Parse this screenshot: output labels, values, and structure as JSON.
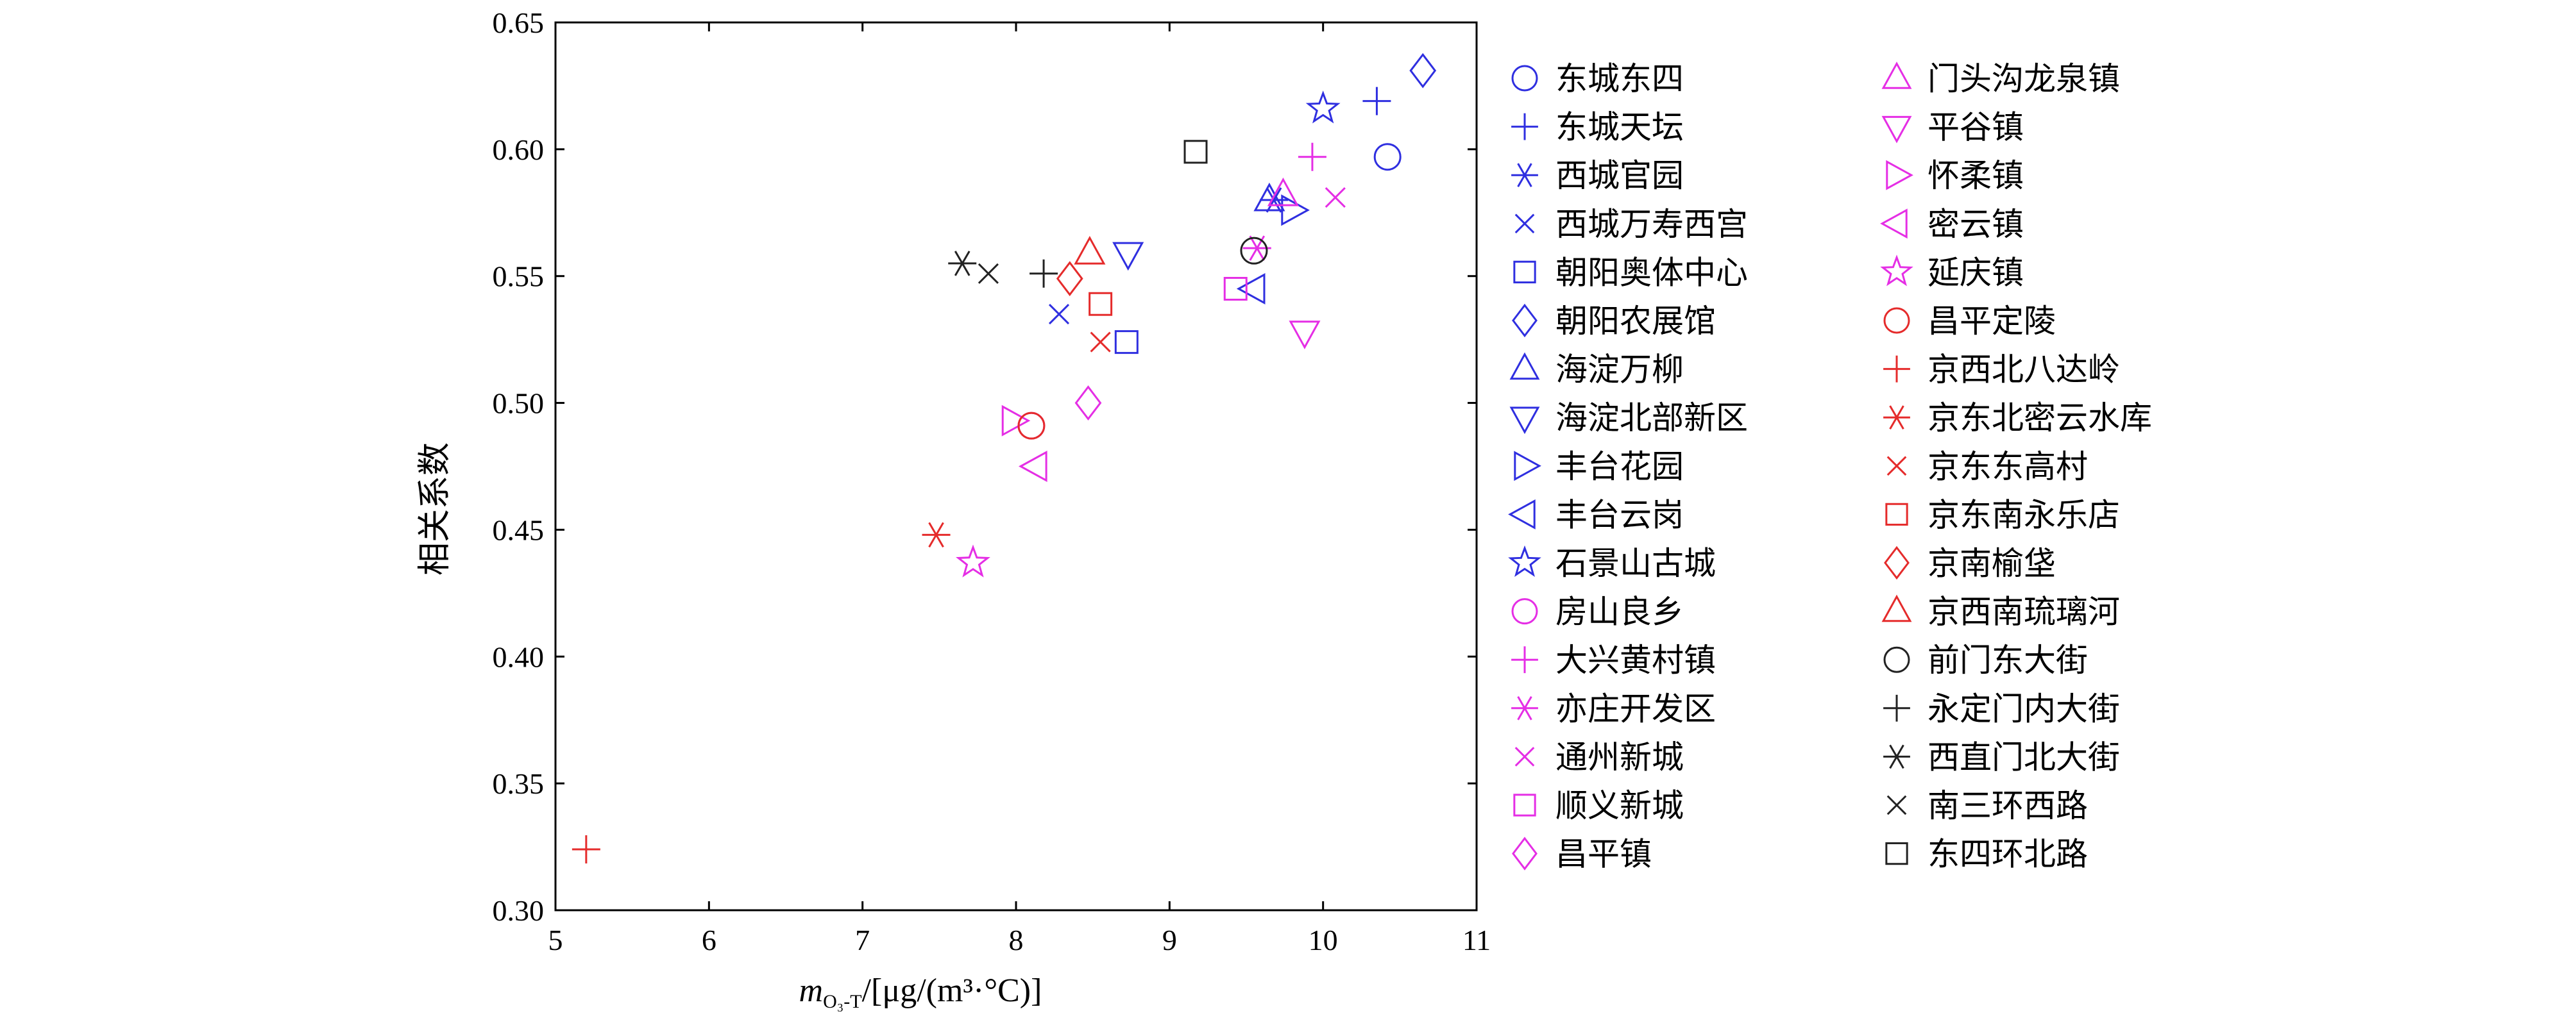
{
  "chart_data": {
    "type": "scatter",
    "ylabel": "相关系数",
    "xlabel": {
      "m": "m",
      "sub": "O₃-T",
      "unit": "/[μg/(m³·°C)]"
    },
    "xlim": [
      5,
      11
    ],
    "ylim": [
      0.3,
      0.65
    ],
    "x_ticks": [
      "5",
      "6",
      "7",
      "8",
      "9",
      "10",
      "11"
    ],
    "y_ticks": [
      "0.30",
      "0.35",
      "0.40",
      "0.45",
      "0.50",
      "0.55",
      "0.60",
      "0.65"
    ],
    "grid": false,
    "legend_position": "right, outside plot, two columns",
    "colors": {
      "blue": "#2f2fe0",
      "magenta": "#e52ee5",
      "red": "#e52b2b",
      "black": "#222222"
    },
    "series": [
      {
        "name": "东城东四",
        "marker": "circle",
        "color": "blue",
        "x": 10.42,
        "y": 0.597
      },
      {
        "name": "东城天坛",
        "marker": "plus",
        "color": "blue",
        "x": 10.35,
        "y": 0.619
      },
      {
        "name": "西城官园",
        "marker": "asterisk",
        "color": "blue",
        "x": 9.68,
        "y": 0.58
      },
      {
        "name": "西城万寿西宫",
        "marker": "x",
        "color": "blue",
        "x": 8.28,
        "y": 0.535
      },
      {
        "name": "朝阳奥体中心",
        "marker": "square",
        "color": "blue",
        "x": 8.72,
        "y": 0.524
      },
      {
        "name": "朝阳农展馆",
        "marker": "diamond",
        "color": "blue",
        "x": 10.65,
        "y": 0.631
      },
      {
        "name": "海淀万柳",
        "marker": "triangle-up",
        "color": "blue",
        "x": 9.65,
        "y": 0.58
      },
      {
        "name": "海淀北部新区",
        "marker": "triangle-down",
        "color": "blue",
        "x": 8.73,
        "y": 0.559
      },
      {
        "name": "丰台花园",
        "marker": "triangle-right",
        "color": "blue",
        "x": 9.8,
        "y": 0.576
      },
      {
        "name": "丰台云岗",
        "marker": "triangle-left",
        "color": "blue",
        "x": 9.55,
        "y": 0.545
      },
      {
        "name": "石景山古城",
        "marker": "star",
        "color": "blue",
        "x": 10.0,
        "y": 0.616
      },
      {
        "name": "房山良乡",
        "marker": "circle",
        "color": "magenta",
        "x": 8.1,
        "y": 0.491
      },
      {
        "name": "大兴黄村镇",
        "marker": "plus",
        "color": "magenta",
        "x": 9.93,
        "y": 0.597
      },
      {
        "name": "亦庄开发区",
        "marker": "asterisk",
        "color": "magenta",
        "x": 9.57,
        "y": 0.561
      },
      {
        "name": "通州新城",
        "marker": "x",
        "color": "magenta",
        "x": 10.08,
        "y": 0.581
      },
      {
        "name": "顺义新城",
        "marker": "square",
        "color": "magenta",
        "x": 9.43,
        "y": 0.545
      },
      {
        "name": "昌平镇",
        "marker": "diamond",
        "color": "magenta",
        "x": 8.47,
        "y": 0.5
      },
      {
        "name": "门头沟龙泉镇",
        "marker": "triangle-up",
        "color": "magenta",
        "x": 9.74,
        "y": 0.582
      },
      {
        "name": "平谷镇",
        "marker": "triangle-down",
        "color": "magenta",
        "x": 9.88,
        "y": 0.528
      },
      {
        "name": "怀柔镇",
        "marker": "triangle-right",
        "color": "magenta",
        "x": 7.98,
        "y": 0.493
      },
      {
        "name": "密云镇",
        "marker": "triangle-left",
        "color": "magenta",
        "x": 8.13,
        "y": 0.475
      },
      {
        "name": "延庆镇",
        "marker": "star",
        "color": "magenta",
        "x": 7.72,
        "y": 0.437
      },
      {
        "name": "昌平定陵",
        "marker": "circle",
        "color": "red",
        "x": 8.1,
        "y": 0.491
      },
      {
        "name": "京西北八达岭",
        "marker": "plus",
        "color": "red",
        "x": 5.2,
        "y": 0.324
      },
      {
        "name": "京东北密云水库",
        "marker": "asterisk",
        "color": "red",
        "x": 7.48,
        "y": 0.448
      },
      {
        "name": "京东东高村",
        "marker": "x",
        "color": "red",
        "x": 8.55,
        "y": 0.524
      },
      {
        "name": "京东南永乐店",
        "marker": "square",
        "color": "red",
        "x": 8.55,
        "y": 0.539
      },
      {
        "name": "京南榆垡",
        "marker": "diamond",
        "color": "red",
        "x": 8.35,
        "y": 0.549
      },
      {
        "name": "京西南琉璃河",
        "marker": "triangle-up",
        "color": "red",
        "x": 8.48,
        "y": 0.559
      },
      {
        "name": "前门东大街",
        "marker": "circle",
        "color": "black",
        "x": 9.55,
        "y": 0.56
      },
      {
        "name": "永定门内大街",
        "marker": "plus",
        "color": "black",
        "x": 8.18,
        "y": 0.551
      },
      {
        "name": "西直门北大街",
        "marker": "asterisk",
        "color": "black",
        "x": 7.65,
        "y": 0.555
      },
      {
        "name": "南三环西路",
        "marker": "x",
        "color": "black",
        "x": 7.82,
        "y": 0.551
      },
      {
        "name": "东四环北路",
        "marker": "square",
        "color": "black",
        "x": 9.17,
        "y": 0.599
      }
    ]
  }
}
